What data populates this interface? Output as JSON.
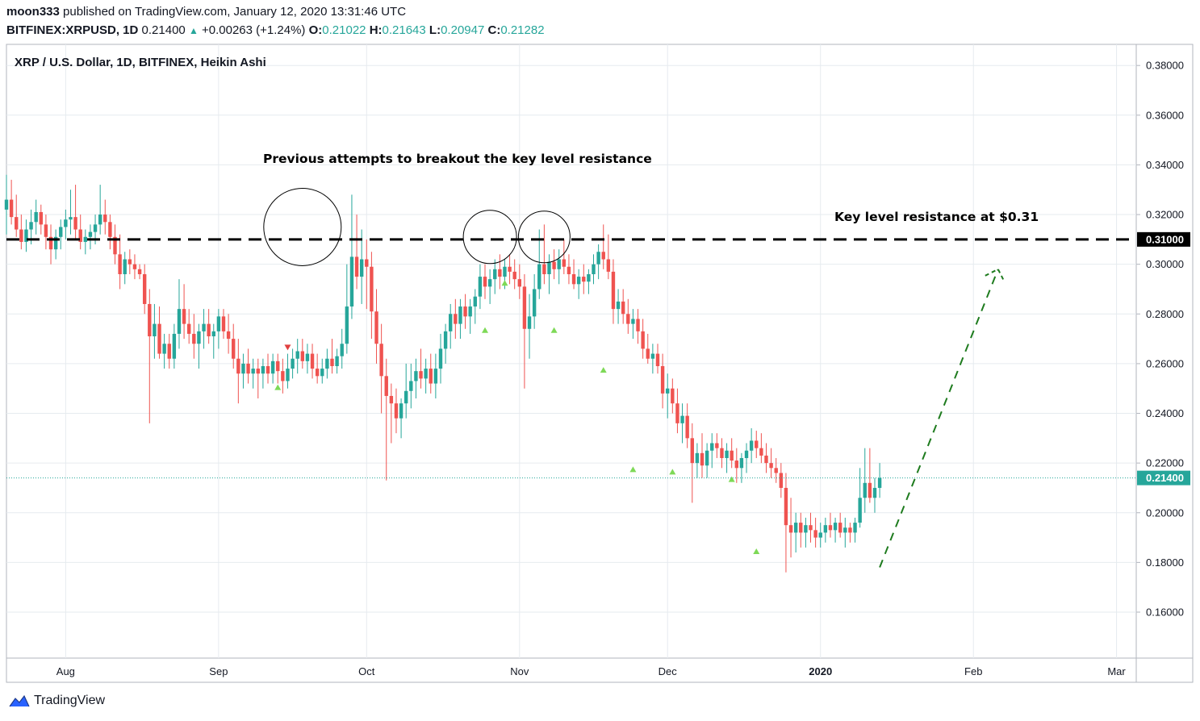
{
  "header": {
    "author": "moon333",
    "published_text": "published on TradingView.com, January 12, 2020 13:31:46 UTC",
    "symbol": "BITFINEX:XRPUSD, 1D",
    "price": "0.21400",
    "change": "+0.00263 (+1.24%)",
    "o_label": "O:",
    "o_value": "0.21022",
    "h_label": "H:",
    "h_value": "0.21643",
    "l_label": "L:",
    "l_value": "0.20947",
    "c_label": "C:",
    "c_value": "0.21282"
  },
  "brand": {
    "name": "TradingView"
  },
  "colors": {
    "up": "#26a69a",
    "down": "#ef5350",
    "grid": "#e6ebef",
    "text": "#131722",
    "projection": "#1e7b1e",
    "marker_up": "#7ed957",
    "marker_down": "#e04040"
  },
  "chart_data": {
    "type": "candlestick",
    "title": "XRP / U.S. Dollar, 1D, BITFINEX, Heikin Ashi",
    "y_axis": {
      "ticks": [
        "0.38000",
        "0.36000",
        "0.34000",
        "0.32000",
        "0.30000",
        "0.28000",
        "0.26000",
        "0.24000",
        "0.22000",
        "0.20000",
        "0.18000",
        "0.16000"
      ],
      "range": [
        0.1415,
        0.3885
      ],
      "position": "right"
    },
    "x_axis": {
      "ticks": [
        {
          "label": "Aug",
          "date": "2019-08-01"
        },
        {
          "label": "Sep",
          "date": "2019-09-01"
        },
        {
          "label": "Oct",
          "date": "2019-10-01"
        },
        {
          "label": "Nov",
          "date": "2019-11-01"
        },
        {
          "label": "Dec",
          "date": "2019-12-01"
        },
        {
          "label": "2020",
          "date": "2020-01-01"
        },
        {
          "label": "Feb",
          "date": "2020-02-01"
        },
        {
          "label": "Mar",
          "date": "2020-03-01"
        }
      ],
      "range": [
        "2019-07-20",
        "2020-03-05"
      ]
    },
    "grid": true,
    "key_level": {
      "value": 0.31,
      "label": "0.31000"
    },
    "last_price": {
      "value": 0.214,
      "label": "0.21400"
    },
    "annotations": [
      {
        "text": "Previous attempts to breakout the key level resistance"
      },
      {
        "text": "Key level resistance at $0.31"
      }
    ],
    "highlight_circles": [
      {
        "date": "2019-09-18",
        "price": 0.315
      },
      {
        "date": "2019-10-26",
        "price": 0.311
      },
      {
        "date": "2019-11-06",
        "price": 0.311
      }
    ],
    "projection_arrow": {
      "from": {
        "date": "2020-01-13",
        "price": 0.178
      },
      "to": {
        "date": "2020-02-06",
        "price": 0.298
      }
    },
    "signals": [
      {
        "date": "2019-09-13",
        "price": 0.2505,
        "dir": "up"
      },
      {
        "date": "2019-09-15",
        "price": 0.2665,
        "dir": "down"
      },
      {
        "date": "2019-10-25",
        "price": 0.2735,
        "dir": "up"
      },
      {
        "date": "2019-10-29",
        "price": 0.2925,
        "dir": "up"
      },
      {
        "date": "2019-11-08",
        "price": 0.2735,
        "dir": "up"
      },
      {
        "date": "2019-11-18",
        "price": 0.2575,
        "dir": "up"
      },
      {
        "date": "2019-11-24",
        "price": 0.2175,
        "dir": "up"
      },
      {
        "date": "2019-12-02",
        "price": 0.2165,
        "dir": "up"
      },
      {
        "date": "2019-12-14",
        "price": 0.2135,
        "dir": "up"
      },
      {
        "date": "2019-12-19",
        "price": 0.1845,
        "dir": "up"
      }
    ],
    "start_date": "2019-07-20",
    "candles": [
      [
        0.322,
        0.336,
        0.312,
        0.326
      ],
      [
        0.326,
        0.334,
        0.316,
        0.319
      ],
      [
        0.319,
        0.328,
        0.311,
        0.314
      ],
      [
        0.314,
        0.32,
        0.306,
        0.309
      ],
      [
        0.309,
        0.318,
        0.305,
        0.314
      ],
      [
        0.314,
        0.322,
        0.308,
        0.317
      ],
      [
        0.317,
        0.326,
        0.312,
        0.321
      ],
      [
        0.321,
        0.324,
        0.312,
        0.316
      ],
      [
        0.316,
        0.32,
        0.306,
        0.311
      ],
      [
        0.311,
        0.316,
        0.3,
        0.306
      ],
      [
        0.306,
        0.314,
        0.302,
        0.311
      ],
      [
        0.311,
        0.318,
        0.306,
        0.315
      ],
      [
        0.315,
        0.322,
        0.31,
        0.318
      ],
      [
        0.318,
        0.33,
        0.312,
        0.319
      ],
      [
        0.319,
        0.332,
        0.31,
        0.314
      ],
      [
        0.314,
        0.32,
        0.306,
        0.309
      ],
      [
        0.309,
        0.314,
        0.304,
        0.311
      ],
      [
        0.311,
        0.316,
        0.306,
        0.313
      ],
      [
        0.313,
        0.32,
        0.308,
        0.316
      ],
      [
        0.316,
        0.332,
        0.312,
        0.32
      ],
      [
        0.32,
        0.326,
        0.312,
        0.317
      ],
      [
        0.317,
        0.32,
        0.306,
        0.311
      ],
      [
        0.311,
        0.316,
        0.3,
        0.304
      ],
      [
        0.304,
        0.312,
        0.29,
        0.296
      ],
      [
        0.296,
        0.305,
        0.292,
        0.302
      ],
      [
        0.302,
        0.306,
        0.296,
        0.3
      ],
      [
        0.3,
        0.304,
        0.294,
        0.298
      ],
      [
        0.298,
        0.3,
        0.294,
        0.296
      ],
      [
        0.296,
        0.3,
        0.28,
        0.284
      ],
      [
        0.284,
        0.29,
        0.236,
        0.271
      ],
      [
        0.271,
        0.284,
        0.262,
        0.276
      ],
      [
        0.276,
        0.283,
        0.262,
        0.264
      ],
      [
        0.264,
        0.272,
        0.258,
        0.268
      ],
      [
        0.268,
        0.272,
        0.258,
        0.262
      ],
      [
        0.262,
        0.276,
        0.258,
        0.272
      ],
      [
        0.272,
        0.294,
        0.266,
        0.282
      ],
      [
        0.282,
        0.292,
        0.27,
        0.276
      ],
      [
        0.276,
        0.282,
        0.268,
        0.272
      ],
      [
        0.272,
        0.28,
        0.262,
        0.268
      ],
      [
        0.268,
        0.276,
        0.258,
        0.273
      ],
      [
        0.273,
        0.282,
        0.266,
        0.276
      ],
      [
        0.276,
        0.282,
        0.268,
        0.271
      ],
      [
        0.271,
        0.276,
        0.262,
        0.273
      ],
      [
        0.273,
        0.282,
        0.266,
        0.279
      ],
      [
        0.279,
        0.282,
        0.27,
        0.273
      ],
      [
        0.273,
        0.28,
        0.264,
        0.27
      ],
      [
        0.27,
        0.276,
        0.258,
        0.262
      ],
      [
        0.262,
        0.27,
        0.244,
        0.256
      ],
      [
        0.256,
        0.264,
        0.25,
        0.26
      ],
      [
        0.26,
        0.266,
        0.252,
        0.256
      ],
      [
        0.256,
        0.262,
        0.25,
        0.258
      ],
      [
        0.258,
        0.262,
        0.246,
        0.256
      ],
      [
        0.256,
        0.262,
        0.25,
        0.259
      ],
      [
        0.259,
        0.264,
        0.252,
        0.256
      ],
      [
        0.256,
        0.264,
        0.252,
        0.261
      ],
      [
        0.261,
        0.264,
        0.252,
        0.257
      ],
      [
        0.257,
        0.262,
        0.248,
        0.253
      ],
      [
        0.253,
        0.264,
        0.25,
        0.258
      ],
      [
        0.258,
        0.266,
        0.254,
        0.262
      ],
      [
        0.262,
        0.27,
        0.256,
        0.265
      ],
      [
        0.265,
        0.27,
        0.258,
        0.261
      ],
      [
        0.261,
        0.268,
        0.256,
        0.264
      ],
      [
        0.264,
        0.268,
        0.254,
        0.258
      ],
      [
        0.258,
        0.264,
        0.252,
        0.255
      ],
      [
        0.255,
        0.262,
        0.252,
        0.258
      ],
      [
        0.258,
        0.266,
        0.254,
        0.262
      ],
      [
        0.262,
        0.27,
        0.256,
        0.259
      ],
      [
        0.259,
        0.266,
        0.256,
        0.263
      ],
      [
        0.263,
        0.274,
        0.258,
        0.268
      ],
      [
        0.268,
        0.3,
        0.264,
        0.283
      ],
      [
        0.283,
        0.328,
        0.278,
        0.303
      ],
      [
        0.303,
        0.32,
        0.29,
        0.295
      ],
      [
        0.295,
        0.314,
        0.284,
        0.302
      ],
      [
        0.302,
        0.31,
        0.282,
        0.299
      ],
      [
        0.299,
        0.305,
        0.27,
        0.281
      ],
      [
        0.281,
        0.29,
        0.26,
        0.268
      ],
      [
        0.268,
        0.276,
        0.24,
        0.255
      ],
      [
        0.255,
        0.262,
        0.213,
        0.247
      ],
      [
        0.247,
        0.252,
        0.228,
        0.244
      ],
      [
        0.244,
        0.25,
        0.232,
        0.238
      ],
      [
        0.238,
        0.246,
        0.23,
        0.244
      ],
      [
        0.244,
        0.26,
        0.238,
        0.249
      ],
      [
        0.249,
        0.26,
        0.242,
        0.253
      ],
      [
        0.253,
        0.262,
        0.246,
        0.257
      ],
      [
        0.257,
        0.266,
        0.25,
        0.254
      ],
      [
        0.254,
        0.262,
        0.248,
        0.258
      ],
      [
        0.258,
        0.264,
        0.248,
        0.252
      ],
      [
        0.252,
        0.264,
        0.246,
        0.258
      ],
      [
        0.258,
        0.272,
        0.252,
        0.266
      ],
      [
        0.266,
        0.276,
        0.26,
        0.273
      ],
      [
        0.273,
        0.284,
        0.266,
        0.28
      ],
      [
        0.28,
        0.286,
        0.27,
        0.276
      ],
      [
        0.276,
        0.286,
        0.27,
        0.283
      ],
      [
        0.283,
        0.288,
        0.274,
        0.279
      ],
      [
        0.279,
        0.286,
        0.272,
        0.283
      ],
      [
        0.283,
        0.29,
        0.276,
        0.287
      ],
      [
        0.287,
        0.3,
        0.282,
        0.295
      ],
      [
        0.295,
        0.3,
        0.286,
        0.291
      ],
      [
        0.291,
        0.298,
        0.284,
        0.294
      ],
      [
        0.294,
        0.302,
        0.288,
        0.298
      ],
      [
        0.298,
        0.304,
        0.29,
        0.295
      ],
      [
        0.295,
        0.302,
        0.29,
        0.299
      ],
      [
        0.299,
        0.304,
        0.292,
        0.297
      ],
      [
        0.297,
        0.302,
        0.29,
        0.294
      ],
      [
        0.294,
        0.3,
        0.286,
        0.291
      ],
      [
        0.291,
        0.296,
        0.25,
        0.274
      ],
      [
        0.274,
        0.288,
        0.262,
        0.279
      ],
      [
        0.279,
        0.296,
        0.274,
        0.29
      ],
      [
        0.29,
        0.314,
        0.286,
        0.3
      ],
      [
        0.3,
        0.316,
        0.292,
        0.296
      ],
      [
        0.296,
        0.304,
        0.288,
        0.301
      ],
      [
        0.301,
        0.306,
        0.294,
        0.298
      ],
      [
        0.298,
        0.306,
        0.292,
        0.302
      ],
      [
        0.302,
        0.31,
        0.296,
        0.299
      ],
      [
        0.299,
        0.304,
        0.292,
        0.296
      ],
      [
        0.296,
        0.302,
        0.29,
        0.292
      ],
      [
        0.292,
        0.298,
        0.286,
        0.295
      ],
      [
        0.295,
        0.3,
        0.288,
        0.293
      ],
      [
        0.293,
        0.298,
        0.288,
        0.296
      ],
      [
        0.296,
        0.304,
        0.292,
        0.3
      ],
      [
        0.3,
        0.308,
        0.294,
        0.305
      ],
      [
        0.305,
        0.316,
        0.298,
        0.302
      ],
      [
        0.302,
        0.312,
        0.294,
        0.297
      ],
      [
        0.297,
        0.302,
        0.276,
        0.282
      ],
      [
        0.282,
        0.29,
        0.276,
        0.285
      ],
      [
        0.285,
        0.29,
        0.276,
        0.28
      ],
      [
        0.28,
        0.286,
        0.272,
        0.276
      ],
      [
        0.276,
        0.282,
        0.27,
        0.278
      ],
      [
        0.278,
        0.282,
        0.268,
        0.273
      ],
      [
        0.273,
        0.278,
        0.262,
        0.266
      ],
      [
        0.266,
        0.272,
        0.26,
        0.262
      ],
      [
        0.262,
        0.268,
        0.256,
        0.264
      ],
      [
        0.264,
        0.268,
        0.256,
        0.259
      ],
      [
        0.259,
        0.264,
        0.242,
        0.248
      ],
      [
        0.248,
        0.256,
        0.238,
        0.25
      ],
      [
        0.25,
        0.254,
        0.24,
        0.244
      ],
      [
        0.244,
        0.25,
        0.232,
        0.236
      ],
      [
        0.236,
        0.244,
        0.228,
        0.239
      ],
      [
        0.239,
        0.244,
        0.226,
        0.23
      ],
      [
        0.23,
        0.236,
        0.204,
        0.22
      ],
      [
        0.22,
        0.228,
        0.214,
        0.224
      ],
      [
        0.224,
        0.232,
        0.214,
        0.219
      ],
      [
        0.219,
        0.228,
        0.214,
        0.225
      ],
      [
        0.225,
        0.232,
        0.218,
        0.228
      ],
      [
        0.228,
        0.232,
        0.222,
        0.226
      ],
      [
        0.226,
        0.23,
        0.218,
        0.222
      ],
      [
        0.222,
        0.228,
        0.216,
        0.225
      ],
      [
        0.225,
        0.23,
        0.218,
        0.221
      ],
      [
        0.221,
        0.226,
        0.212,
        0.218
      ],
      [
        0.218,
        0.224,
        0.212,
        0.222
      ],
      [
        0.222,
        0.228,
        0.216,
        0.225
      ],
      [
        0.225,
        0.234,
        0.22,
        0.229
      ],
      [
        0.229,
        0.233,
        0.222,
        0.226
      ],
      [
        0.226,
        0.232,
        0.22,
        0.223
      ],
      [
        0.223,
        0.228,
        0.216,
        0.22
      ],
      [
        0.22,
        0.226,
        0.214,
        0.218
      ],
      [
        0.218,
        0.222,
        0.212,
        0.216
      ],
      [
        0.216,
        0.22,
        0.206,
        0.21
      ],
      [
        0.21,
        0.216,
        0.176,
        0.195
      ],
      [
        0.195,
        0.206,
        0.182,
        0.192
      ],
      [
        0.192,
        0.2,
        0.184,
        0.196
      ],
      [
        0.196,
        0.2,
        0.186,
        0.192
      ],
      [
        0.192,
        0.198,
        0.186,
        0.195
      ],
      [
        0.195,
        0.2,
        0.188,
        0.193
      ],
      [
        0.193,
        0.198,
        0.186,
        0.19
      ],
      [
        0.19,
        0.196,
        0.186,
        0.192
      ],
      [
        0.192,
        0.198,
        0.188,
        0.195
      ],
      [
        0.195,
        0.2,
        0.19,
        0.193
      ],
      [
        0.193,
        0.198,
        0.188,
        0.196
      ],
      [
        0.196,
        0.2,
        0.19,
        0.192
      ],
      [
        0.192,
        0.198,
        0.186,
        0.194
      ],
      [
        0.194,
        0.196,
        0.188,
        0.192
      ],
      [
        0.192,
        0.198,
        0.188,
        0.196
      ],
      [
        0.196,
        0.218,
        0.194,
        0.206
      ],
      [
        0.206,
        0.226,
        0.2,
        0.212
      ],
      [
        0.212,
        0.226,
        0.204,
        0.206
      ],
      [
        0.206,
        0.214,
        0.2,
        0.21
      ],
      [
        0.21,
        0.22,
        0.206,
        0.214
      ]
    ]
  }
}
